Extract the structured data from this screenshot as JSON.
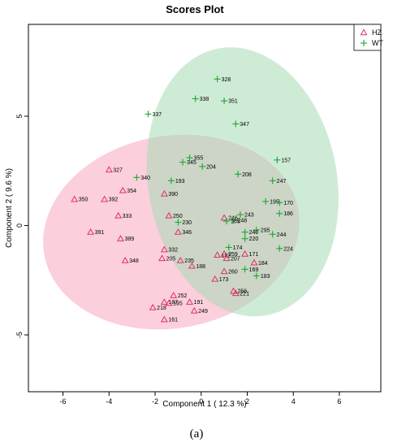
{
  "chart_data": {
    "type": "scatter",
    "title": "Scores Plot",
    "xlabel": "Component 1 ( 12.3 %)",
    "ylabel": "Component 2 ( 9.6 %)",
    "xlim": [
      -7.5,
      7.8
    ],
    "ylim": [
      -7.6,
      9.2
    ],
    "xticks": [
      -6,
      -4,
      -2,
      0,
      2,
      4,
      6
    ],
    "yticks": [
      -5,
      0,
      5
    ],
    "grid": false,
    "legend_position": "top-right",
    "series": [
      {
        "name": "HZ",
        "marker": "triangle",
        "color": "#e0306a",
        "ellipse_color": "#f7a8bf",
        "ellipse": {
          "center": [
            -1.3,
            -0.3
          ],
          "radius_x": 5.6,
          "radius_y": 4.4,
          "angle_deg": 10
        },
        "points": [
          {
            "label": "327",
            "x": -4.0,
            "y": 2.55
          },
          {
            "label": "354",
            "x": -3.4,
            "y": 1.6
          },
          {
            "label": "350",
            "x": -5.5,
            "y": 1.2
          },
          {
            "label": "392",
            "x": -4.2,
            "y": 1.2
          },
          {
            "label": "333",
            "x": -3.6,
            "y": 0.45
          },
          {
            "label": "391",
            "x": -4.8,
            "y": -0.3
          },
          {
            "label": "389",
            "x": -3.5,
            "y": -0.6
          },
          {
            "label": "348",
            "x": -3.3,
            "y": -1.6
          },
          {
            "label": "390",
            "x": -1.6,
            "y": 1.45
          },
          {
            "label": "250",
            "x": -1.4,
            "y": 0.45
          },
          {
            "label": "346",
            "x": -1.0,
            "y": -0.3
          },
          {
            "label": "332",
            "x": -1.6,
            "y": -1.1
          },
          {
            "label": "205",
            "x": -1.7,
            "y": -1.5
          },
          {
            "label": "235",
            "x": -0.9,
            "y": -1.6
          },
          {
            "label": "188",
            "x": -0.4,
            "y": -1.85
          },
          {
            "label": "252",
            "x": -1.2,
            "y": -3.2
          },
          {
            "label": "187",
            "x": -1.6,
            "y": -3.5
          },
          {
            "label": "195",
            "x": -1.4,
            "y": -3.55
          },
          {
            "label": "218",
            "x": -2.1,
            "y": -3.75
          },
          {
            "label": "191",
            "x": -0.5,
            "y": -3.5
          },
          {
            "label": "249",
            "x": -0.3,
            "y": -3.9
          },
          {
            "label": "161",
            "x": -1.6,
            "y": -4.3
          },
          {
            "label": "246",
            "x": 1.0,
            "y": 0.35
          },
          {
            "label": "192",
            "x": 0.7,
            "y": -1.35
          },
          {
            "label": "259",
            "x": 1.0,
            "y": -1.3
          },
          {
            "label": "207",
            "x": 1.1,
            "y": -1.5
          },
          {
            "label": "171",
            "x": 1.9,
            "y": -1.3
          },
          {
            "label": "184",
            "x": 2.3,
            "y": -1.7
          },
          {
            "label": "260",
            "x": 1.0,
            "y": -2.1
          },
          {
            "label": "173",
            "x": 0.6,
            "y": -2.45
          },
          {
            "label": "256",
            "x": 1.4,
            "y": -3.0
          },
          {
            "label": "221",
            "x": 1.5,
            "y": -3.1
          }
        ]
      },
      {
        "name": "WT",
        "marker": "plus",
        "color": "#18a832",
        "ellipse_color": "#a6dbb5",
        "ellipse": {
          "center": [
            1.8,
            2.0
          ],
          "radius_x": 4.1,
          "radius_y": 6.2,
          "angle_deg": 10
        },
        "points": [
          {
            "label": "328",
            "x": 0.7,
            "y": 6.7
          },
          {
            "label": "338",
            "x": -0.25,
            "y": 5.8
          },
          {
            "label": "351",
            "x": 1.0,
            "y": 5.7
          },
          {
            "label": "337",
            "x": -2.3,
            "y": 5.1
          },
          {
            "label": "347",
            "x": 1.5,
            "y": 4.65
          },
          {
            "label": "355",
            "x": -0.5,
            "y": 3.1
          },
          {
            "label": "345",
            "x": -0.8,
            "y": 2.9
          },
          {
            "label": "204",
            "x": 0.05,
            "y": 2.7
          },
          {
            "label": "157",
            "x": 3.3,
            "y": 3.0
          },
          {
            "label": "208",
            "x": 1.6,
            "y": 2.35
          },
          {
            "label": "340",
            "x": -2.8,
            "y": 2.2
          },
          {
            "label": "193",
            "x": -1.3,
            "y": 2.05
          },
          {
            "label": "247",
            "x": 3.1,
            "y": 2.05
          },
          {
            "label": "195",
            "x": 2.8,
            "y": 1.1
          },
          {
            "label": "170",
            "x": 3.4,
            "y": 1.05
          },
          {
            "label": "186",
            "x": 3.4,
            "y": 0.55
          },
          {
            "label": "243",
            "x": 1.7,
            "y": 0.5
          },
          {
            "label": "248",
            "x": 1.4,
            "y": 0.25
          },
          {
            "label": "165",
            "x": 1.1,
            "y": 0.2
          },
          {
            "label": "230",
            "x": -1.0,
            "y": 0.15
          },
          {
            "label": "295",
            "x": 2.4,
            "y": -0.2
          },
          {
            "label": "240",
            "x": 1.9,
            "y": -0.3
          },
          {
            "label": "244",
            "x": 3.1,
            "y": -0.4
          },
          {
            "label": "220",
            "x": 1.9,
            "y": -0.6
          },
          {
            "label": "174",
            "x": 1.2,
            "y": -1.0
          },
          {
            "label": "224",
            "x": 3.4,
            "y": -1.05
          },
          {
            "label": "169",
            "x": 1.9,
            "y": -2.0
          },
          {
            "label": "183",
            "x": 2.4,
            "y": -2.3
          }
        ]
      }
    ],
    "caption": "(a)"
  }
}
